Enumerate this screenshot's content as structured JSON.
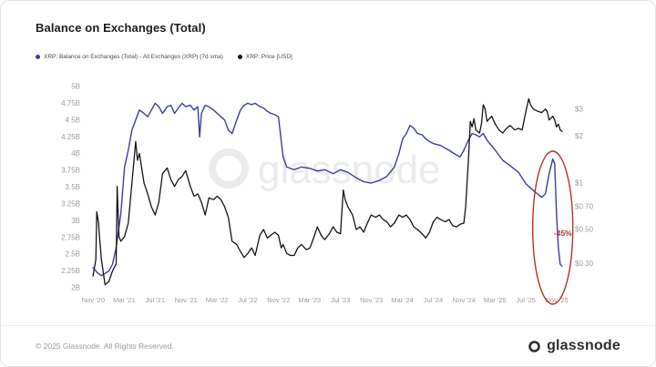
{
  "page": {
    "title": "Balance on Exchanges (Total)",
    "watermark": "glassnode",
    "footer": {
      "copyright": "© 2025 Glassnode. All Rights Reserved.",
      "brand": "glassnode"
    }
  },
  "chart_data": {
    "type": "line",
    "title": "Balance on Exchanges (Total)",
    "watermark": "glassnode",
    "grid": false,
    "legend_position": "top-left",
    "xlim": [
      2020.77,
      2025.95
    ],
    "x_ticks": [
      {
        "label": "Nov '20",
        "value": 2020.8333
      },
      {
        "label": "Mar '21",
        "value": 2021.1667
      },
      {
        "label": "Jul '21",
        "value": 2021.5
      },
      {
        "label": "Nov '21",
        "value": 2021.8333
      },
      {
        "label": "Mar '22",
        "value": 2022.1667
      },
      {
        "label": "Jul '22",
        "value": 2022.5
      },
      {
        "label": "Nov '22",
        "value": 2022.8333
      },
      {
        "label": "Mar '23",
        "value": 2023.1667
      },
      {
        "label": "Jul '23",
        "value": 2023.5
      },
      {
        "label": "Nov '23",
        "value": 2023.8333
      },
      {
        "label": "Mar '24",
        "value": 2024.1667
      },
      {
        "label": "Jul '24",
        "value": 2024.5
      },
      {
        "label": "Nov '24",
        "value": 2024.8333
      },
      {
        "label": "Mar '25",
        "value": 2025.1667
      },
      {
        "label": "Jul '25",
        "value": 2025.5
      },
      {
        "label": "Nov '25",
        "value": 2025.8333
      }
    ],
    "left_axis": {
      "name": "XRP Balance on Exchanges",
      "unit": "XRP (billions)",
      "scale": "linear",
      "lim": [
        2.0,
        5.0
      ],
      "ticks": [
        {
          "label": "2B",
          "value": 2.0
        },
        {
          "label": "2.25B",
          "value": 2.25
        },
        {
          "label": "2.5B",
          "value": 2.5
        },
        {
          "label": "2.75B",
          "value": 2.75
        },
        {
          "label": "3B",
          "value": 3.0
        },
        {
          "label": "3.25B",
          "value": 3.25
        },
        {
          "label": "3.5B",
          "value": 3.5
        },
        {
          "label": "3.75B",
          "value": 3.75
        },
        {
          "label": "4B",
          "value": 4.0
        },
        {
          "label": "4.25B",
          "value": 4.25
        },
        {
          "label": "4.5B",
          "value": 4.5
        },
        {
          "label": "4.75B",
          "value": 4.75
        },
        {
          "label": "5B",
          "value": 5.0
        }
      ]
    },
    "right_axis": {
      "name": "XRP Price (USD)",
      "unit": "USD",
      "scale": "log",
      "lim": [
        0.21,
        4.2
      ],
      "ticks": [
        {
          "label": "$0.30",
          "value": 0.3
        },
        {
          "label": "$0.50",
          "value": 0.5
        },
        {
          "label": "$0.70",
          "value": 0.7
        },
        {
          "label": "$1",
          "value": 1
        },
        {
          "label": "$2",
          "value": 2
        },
        {
          "label": "$3",
          "value": 3
        }
      ]
    },
    "series": [
      {
        "name": "XRP: Balance on Exchanges (Total) - All Exchanges (XRP) (7d sma)",
        "color": "#3c3ca6",
        "axis": "left",
        "unit": "B",
        "points": [
          [
            2020.83,
            2.3
          ],
          [
            2020.88,
            2.22
          ],
          [
            2020.92,
            2.18
          ],
          [
            2021.0,
            2.25
          ],
          [
            2021.04,
            2.35
          ],
          [
            2021.08,
            2.6
          ],
          [
            2021.13,
            3.1
          ],
          [
            2021.17,
            3.8
          ],
          [
            2021.21,
            4.05
          ],
          [
            2021.25,
            4.35
          ],
          [
            2021.29,
            4.5
          ],
          [
            2021.33,
            4.65
          ],
          [
            2021.38,
            4.6
          ],
          [
            2021.42,
            4.55
          ],
          [
            2021.46,
            4.65
          ],
          [
            2021.5,
            4.75
          ],
          [
            2021.54,
            4.7
          ],
          [
            2021.58,
            4.6
          ],
          [
            2021.63,
            4.7
          ],
          [
            2021.67,
            4.72
          ],
          [
            2021.71,
            4.6
          ],
          [
            2021.75,
            4.68
          ],
          [
            2021.79,
            4.75
          ],
          [
            2021.83,
            4.7
          ],
          [
            2021.88,
            4.72
          ],
          [
            2021.92,
            4.65
          ],
          [
            2021.96,
            4.7
          ],
          [
            2021.98,
            4.25
          ],
          [
            2022.0,
            4.6
          ],
          [
            2022.04,
            4.72
          ],
          [
            2022.08,
            4.7
          ],
          [
            2022.13,
            4.65
          ],
          [
            2022.17,
            4.6
          ],
          [
            2022.21,
            4.55
          ],
          [
            2022.25,
            4.5
          ],
          [
            2022.29,
            4.35
          ],
          [
            2022.33,
            4.3
          ],
          [
            2022.38,
            4.5
          ],
          [
            2022.42,
            4.65
          ],
          [
            2022.46,
            4.72
          ],
          [
            2022.5,
            4.75
          ],
          [
            2022.54,
            4.73
          ],
          [
            2022.58,
            4.75
          ],
          [
            2022.63,
            4.7
          ],
          [
            2022.67,
            4.68
          ],
          [
            2022.71,
            4.63
          ],
          [
            2022.75,
            4.6
          ],
          [
            2022.79,
            4.58
          ],
          [
            2022.83,
            4.55
          ],
          [
            2022.86,
            4.2
          ],
          [
            2022.88,
            3.95
          ],
          [
            2022.92,
            3.8
          ],
          [
            2022.96,
            3.78
          ],
          [
            2023.0,
            3.76
          ],
          [
            2023.08,
            3.8
          ],
          [
            2023.17,
            3.78
          ],
          [
            2023.25,
            3.74
          ],
          [
            2023.33,
            3.76
          ],
          [
            2023.42,
            3.7
          ],
          [
            2023.5,
            3.76
          ],
          [
            2023.58,
            3.72
          ],
          [
            2023.67,
            3.64
          ],
          [
            2023.75,
            3.58
          ],
          [
            2023.83,
            3.56
          ],
          [
            2023.92,
            3.6
          ],
          [
            2024.0,
            3.66
          ],
          [
            2024.08,
            3.8
          ],
          [
            2024.13,
            4.0
          ],
          [
            2024.17,
            4.22
          ],
          [
            2024.21,
            4.3
          ],
          [
            2024.25,
            4.42
          ],
          [
            2024.29,
            4.38
          ],
          [
            2024.33,
            4.3
          ],
          [
            2024.38,
            4.28
          ],
          [
            2024.42,
            4.22
          ],
          [
            2024.46,
            4.18
          ],
          [
            2024.5,
            4.15
          ],
          [
            2024.58,
            4.12
          ],
          [
            2024.67,
            4.05
          ],
          [
            2024.75,
            3.98
          ],
          [
            2024.79,
            3.95
          ],
          [
            2024.83,
            4.05
          ],
          [
            2024.88,
            4.2
          ],
          [
            2024.92,
            4.3
          ],
          [
            2024.96,
            4.28
          ],
          [
            2025.0,
            4.25
          ],
          [
            2025.04,
            4.3
          ],
          [
            2025.08,
            4.2
          ],
          [
            2025.17,
            4.05
          ],
          [
            2025.25,
            3.9
          ],
          [
            2025.33,
            3.82
          ],
          [
            2025.42,
            3.72
          ],
          [
            2025.5,
            3.55
          ],
          [
            2025.58,
            3.45
          ],
          [
            2025.67,
            3.35
          ],
          [
            2025.71,
            3.4
          ],
          [
            2025.75,
            3.7
          ],
          [
            2025.79,
            3.92
          ],
          [
            2025.81,
            3.85
          ],
          [
            2025.83,
            3.1
          ],
          [
            2025.85,
            2.6
          ],
          [
            2025.87,
            2.35
          ],
          [
            2025.89,
            2.32
          ]
        ]
      },
      {
        "name": "XRP: Price [USD]",
        "color": "#141414",
        "axis": "right",
        "unit": "USD",
        "points": [
          [
            2020.83,
            0.25
          ],
          [
            2020.86,
            0.32
          ],
          [
            2020.87,
            0.65
          ],
          [
            2020.89,
            0.55
          ],
          [
            2020.9,
            0.45
          ],
          [
            2020.92,
            0.32
          ],
          [
            2020.96,
            0.22
          ],
          [
            2021.0,
            0.23
          ],
          [
            2021.04,
            0.27
          ],
          [
            2021.08,
            0.3
          ],
          [
            2021.09,
            0.95
          ],
          [
            2021.11,
            0.45
          ],
          [
            2021.13,
            0.42
          ],
          [
            2021.17,
            0.45
          ],
          [
            2021.21,
            0.55
          ],
          [
            2021.25,
            1.0
          ],
          [
            2021.29,
            1.85
          ],
          [
            2021.31,
            1.4
          ],
          [
            2021.33,
            1.55
          ],
          [
            2021.38,
            1.0
          ],
          [
            2021.42,
            0.85
          ],
          [
            2021.46,
            0.7
          ],
          [
            2021.5,
            0.62
          ],
          [
            2021.54,
            0.75
          ],
          [
            2021.58,
            1.15
          ],
          [
            2021.63,
            1.25
          ],
          [
            2021.67,
            1.05
          ],
          [
            2021.71,
            0.95
          ],
          [
            2021.75,
            1.05
          ],
          [
            2021.79,
            1.1
          ],
          [
            2021.83,
            1.2
          ],
          [
            2021.88,
            0.95
          ],
          [
            2021.92,
            0.82
          ],
          [
            2021.96,
            0.85
          ],
          [
            2022.0,
            0.75
          ],
          [
            2022.04,
            0.62
          ],
          [
            2022.08,
            0.8
          ],
          [
            2022.13,
            0.78
          ],
          [
            2022.17,
            0.82
          ],
          [
            2022.21,
            0.78
          ],
          [
            2022.25,
            0.7
          ],
          [
            2022.29,
            0.6
          ],
          [
            2022.33,
            0.42
          ],
          [
            2022.38,
            0.4
          ],
          [
            2022.42,
            0.36
          ],
          [
            2022.46,
            0.33
          ],
          [
            2022.5,
            0.35
          ],
          [
            2022.54,
            0.38
          ],
          [
            2022.58,
            0.34
          ],
          [
            2022.63,
            0.46
          ],
          [
            2022.67,
            0.5
          ],
          [
            2022.71,
            0.44
          ],
          [
            2022.75,
            0.46
          ],
          [
            2022.79,
            0.48
          ],
          [
            2022.83,
            0.46
          ],
          [
            2022.86,
            0.38
          ],
          [
            2022.88,
            0.4
          ],
          [
            2022.92,
            0.35
          ],
          [
            2022.96,
            0.34
          ],
          [
            2023.0,
            0.34
          ],
          [
            2023.04,
            0.38
          ],
          [
            2023.08,
            0.4
          ],
          [
            2023.13,
            0.37
          ],
          [
            2023.17,
            0.38
          ],
          [
            2023.21,
            0.44
          ],
          [
            2023.25,
            0.52
          ],
          [
            2023.29,
            0.46
          ],
          [
            2023.33,
            0.43
          ],
          [
            2023.38,
            0.47
          ],
          [
            2023.42,
            0.52
          ],
          [
            2023.46,
            0.48
          ],
          [
            2023.5,
            0.47
          ],
          [
            2023.53,
            0.9
          ],
          [
            2023.55,
            0.78
          ],
          [
            2023.58,
            0.7
          ],
          [
            2023.63,
            0.62
          ],
          [
            2023.67,
            0.5
          ],
          [
            2023.71,
            0.52
          ],
          [
            2023.75,
            0.48
          ],
          [
            2023.79,
            0.55
          ],
          [
            2023.83,
            0.62
          ],
          [
            2023.88,
            0.6
          ],
          [
            2023.92,
            0.62
          ],
          [
            2023.96,
            0.58
          ],
          [
            2024.0,
            0.56
          ],
          [
            2024.04,
            0.52
          ],
          [
            2024.08,
            0.55
          ],
          [
            2024.13,
            0.62
          ],
          [
            2024.17,
            0.6
          ],
          [
            2024.21,
            0.62
          ],
          [
            2024.25,
            0.58
          ],
          [
            2024.29,
            0.52
          ],
          [
            2024.33,
            0.5
          ],
          [
            2024.38,
            0.47
          ],
          [
            2024.42,
            0.44
          ],
          [
            2024.46,
            0.48
          ],
          [
            2024.5,
            0.56
          ],
          [
            2024.54,
            0.6
          ],
          [
            2024.58,
            0.58
          ],
          [
            2024.63,
            0.56
          ],
          [
            2024.67,
            0.58
          ],
          [
            2024.71,
            0.53
          ],
          [
            2024.75,
            0.52
          ],
          [
            2024.79,
            0.54
          ],
          [
            2024.83,
            0.55
          ],
          [
            2024.85,
            0.7
          ],
          [
            2024.88,
            1.4
          ],
          [
            2024.9,
            2.5
          ],
          [
            2024.92,
            2.3
          ],
          [
            2024.94,
            2.6
          ],
          [
            2024.96,
            2.2
          ],
          [
            2025.0,
            2.1
          ],
          [
            2025.02,
            2.4
          ],
          [
            2025.04,
            3.2
          ],
          [
            2025.06,
            3.0
          ],
          [
            2025.08,
            2.5
          ],
          [
            2025.13,
            2.7
          ],
          [
            2025.17,
            2.4
          ],
          [
            2025.21,
            2.2
          ],
          [
            2025.25,
            2.1
          ],
          [
            2025.29,
            2.25
          ],
          [
            2025.33,
            2.35
          ],
          [
            2025.38,
            2.2
          ],
          [
            2025.42,
            2.25
          ],
          [
            2025.46,
            2.2
          ],
          [
            2025.5,
            2.9
          ],
          [
            2025.53,
            3.5
          ],
          [
            2025.55,
            3.2
          ],
          [
            2025.58,
            3.0
          ],
          [
            2025.63,
            2.9
          ],
          [
            2025.67,
            2.85
          ],
          [
            2025.71,
            3.0
          ],
          [
            2025.73,
            2.9
          ],
          [
            2025.75,
            2.55
          ],
          [
            2025.79,
            2.7
          ],
          [
            2025.81,
            2.55
          ],
          [
            2025.83,
            2.3
          ],
          [
            2025.85,
            2.4
          ],
          [
            2025.87,
            2.2
          ],
          [
            2025.89,
            2.15
          ]
        ]
      }
    ],
    "annotation": {
      "label": "-45%",
      "color": "#b03527",
      "x": 2025.79
    }
  }
}
